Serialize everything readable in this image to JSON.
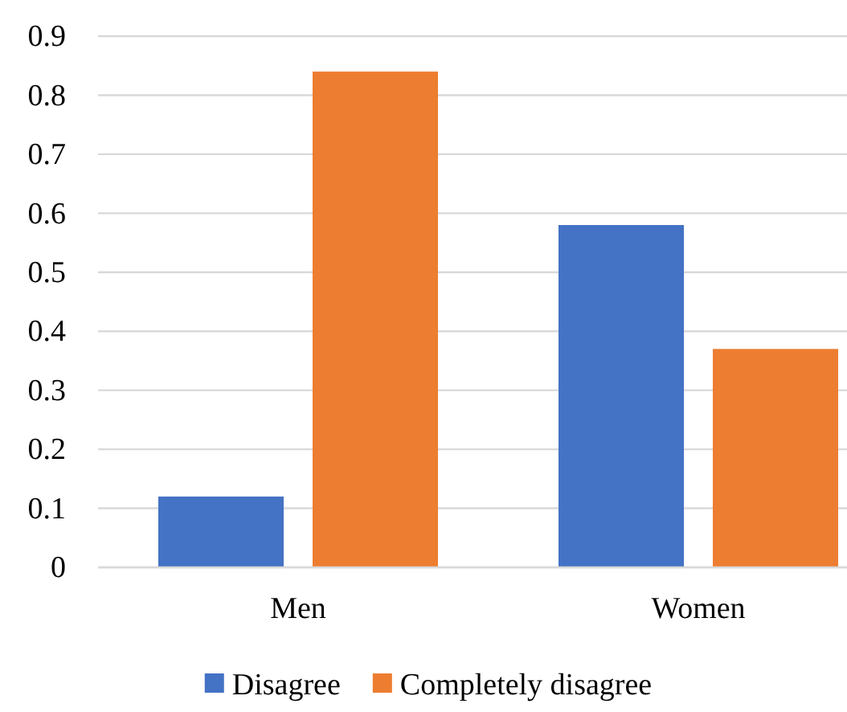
{
  "chart_data": {
    "type": "bar",
    "categories": [
      "Men",
      "Women"
    ],
    "series": [
      {
        "name": "Disagree",
        "color": "#4472c4",
        "values": [
          0.12,
          0.58
        ]
      },
      {
        "name": "Completely disagree",
        "color": "#ed7d31",
        "values": [
          0.84,
          0.37
        ]
      }
    ],
    "ylim": [
      0,
      0.9
    ],
    "yticks": [
      0,
      0.1,
      0.2,
      0.3,
      0.4,
      0.5,
      0.6,
      0.7,
      0.8,
      0.9
    ],
    "grid": "y",
    "legend": "bottom"
  }
}
